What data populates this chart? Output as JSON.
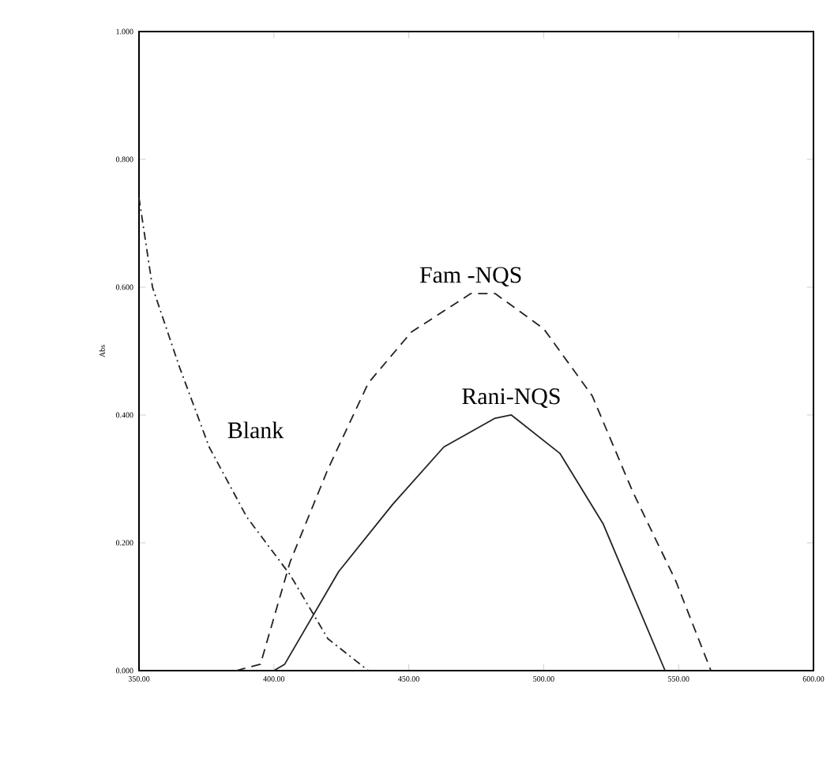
{
  "chart_data": {
    "type": "line",
    "ylabel": "Abs",
    "xlim": [
      350,
      600
    ],
    "ylim": [
      0,
      1
    ],
    "xticks": [
      {
        "value": 350,
        "label": "350.00"
      },
      {
        "value": 400,
        "label": "400.00"
      },
      {
        "value": 450,
        "label": "450.00"
      },
      {
        "value": 500,
        "label": "500.00"
      },
      {
        "value": 550,
        "label": "550.00"
      },
      {
        "value": 600,
        "label": "600.00"
      }
    ],
    "yticks": [
      {
        "value": 0,
        "label": "0.000"
      },
      {
        "value": 0.2,
        "label": "0.200"
      },
      {
        "value": 0.4,
        "label": "0.400"
      },
      {
        "value": 0.6,
        "label": "0.600"
      },
      {
        "value": 0.8,
        "label": "0.800"
      },
      {
        "value": 1,
        "label": "1.000"
      }
    ],
    "series": [
      {
        "name": "Blank",
        "color": "#222222",
        "line_style": "dotted",
        "x": [
          350,
          355,
          365,
          376,
          390,
          406,
          420,
          435
        ],
        "values": [
          0.74,
          0.6,
          0.475,
          0.35,
          0.24,
          0.15,
          0.05,
          0
        ]
      },
      {
        "name": "Fam -NQS",
        "color": "#222222",
        "line_style": "dashed",
        "x": [
          386,
          395,
          406,
          420,
          435,
          451,
          473,
          482,
          500,
          518,
          533,
          549,
          562
        ],
        "values": [
          0,
          0.01,
          0.17,
          0.315,
          0.45,
          0.53,
          0.59,
          0.59,
          0.535,
          0.43,
          0.28,
          0.14,
          0
        ]
      },
      {
        "name": "Rani-NQS",
        "color": "#222222",
        "line_style": "solid",
        "x": [
          400,
          404,
          424,
          444,
          463,
          482,
          488,
          506,
          522,
          533,
          545
        ],
        "values": [
          0,
          0.01,
          0.155,
          0.26,
          0.35,
          0.395,
          0.4,
          0.34,
          0.23,
          0.12,
          0
        ]
      }
    ],
    "grid": false
  }
}
